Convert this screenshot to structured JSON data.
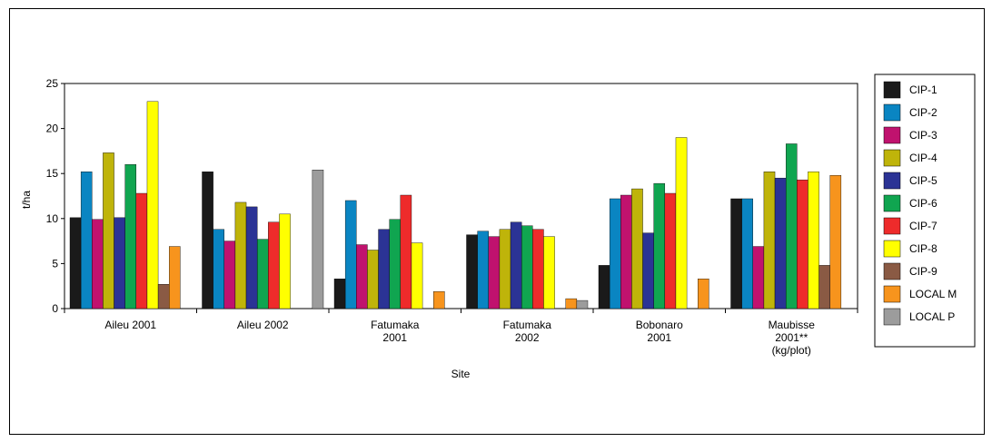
{
  "chart_data": {
    "type": "bar",
    "xlabel": "Site",
    "ylabel": "t/ha",
    "ylim": [
      0,
      25
    ],
    "yticks": [
      0,
      5,
      10,
      15,
      20,
      25
    ],
    "grid": false,
    "legend_position": "right",
    "categories": [
      [
        "Aileu 2001"
      ],
      [
        "Aileu 2002"
      ],
      [
        "Fatumaka",
        "2001"
      ],
      [
        "Fatumaka",
        "2002"
      ],
      [
        "Bobonaro",
        "2001"
      ],
      [
        "Maubisse",
        "2001**",
        "(kg/plot)"
      ]
    ],
    "series": [
      {
        "name": "CIP-1",
        "color": "#1a1a1a",
        "values": [
          10.1,
          15.2,
          3.3,
          8.2,
          4.8,
          12.2
        ]
      },
      {
        "name": "CIP-2",
        "color": "#0a85c2",
        "values": [
          15.2,
          8.8,
          12.0,
          8.6,
          12.2,
          12.2
        ]
      },
      {
        "name": "CIP-3",
        "color": "#c0126e",
        "values": [
          9.9,
          7.5,
          7.1,
          8.0,
          12.6,
          6.9
        ]
      },
      {
        "name": "CIP-4",
        "color": "#bfb40a",
        "values": [
          17.3,
          11.8,
          6.5,
          8.8,
          13.3,
          15.2
        ]
      },
      {
        "name": "CIP-5",
        "color": "#2b3395",
        "values": [
          10.1,
          11.3,
          8.8,
          9.6,
          8.4,
          14.5
        ]
      },
      {
        "name": "CIP-6",
        "color": "#10a550",
        "values": [
          16.0,
          7.7,
          9.9,
          9.2,
          13.9,
          18.3
        ]
      },
      {
        "name": "CIP-7",
        "color": "#ee2b2b",
        "values": [
          12.8,
          9.6,
          12.6,
          8.8,
          12.8,
          14.3
        ]
      },
      {
        "name": "CIP-8",
        "color": "#ffff00",
        "values": [
          23.0,
          10.5,
          7.3,
          8.0,
          19.0,
          15.2
        ]
      },
      {
        "name": "CIP-9",
        "color": "#8a5a44",
        "values": [
          2.7,
          null,
          null,
          null,
          null,
          4.8
        ]
      },
      {
        "name": "LOCAL M",
        "color": "#f7941d",
        "values": [
          6.9,
          null,
          1.9,
          1.1,
          3.3,
          14.8
        ]
      },
      {
        "name": "LOCAL P",
        "color": "#9c9c9c",
        "values": [
          null,
          15.4,
          null,
          0.9,
          null,
          null
        ]
      }
    ]
  }
}
